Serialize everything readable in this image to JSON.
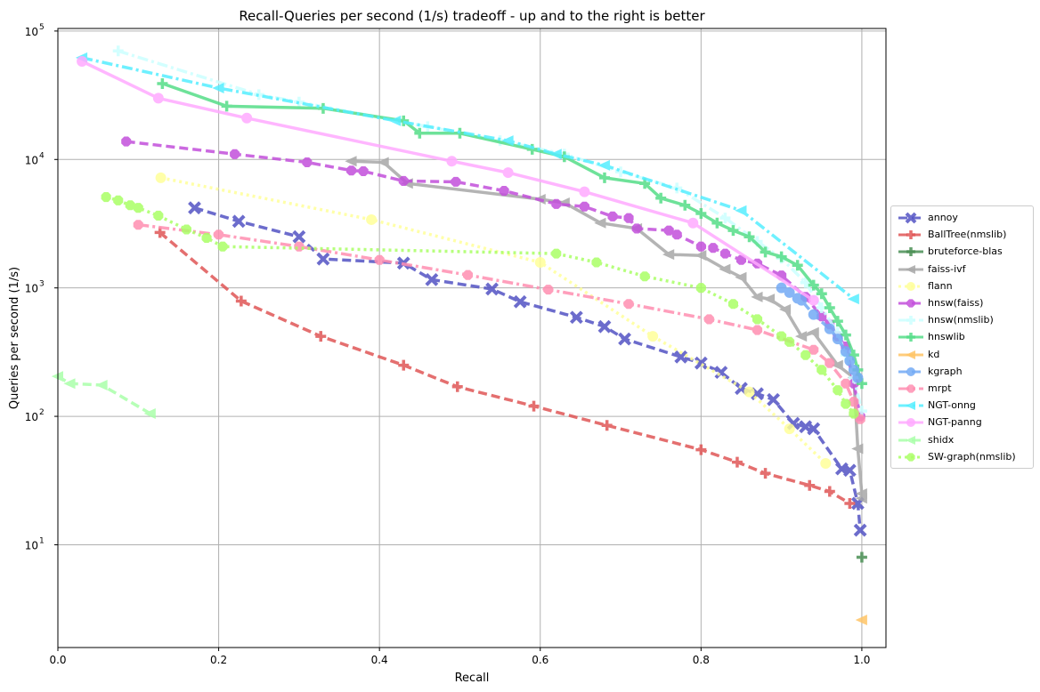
{
  "chart_data": {
    "type": "line",
    "title": "Recall-Queries per second (1/s) tradeoff - up and to the right is better",
    "xlabel": "Recall",
    "ylabel": "Queries per second (1/s)",
    "xlim": [
      0.0,
      1.03
    ],
    "ylim_log10": [
      0.2,
      5.02
    ],
    "y_scale": "log",
    "grid": true,
    "legend_position": "right",
    "x_ticks": [
      {
        "value": 0.0,
        "label": "0.0"
      },
      {
        "value": 0.2,
        "label": "0.2"
      },
      {
        "value": 0.4,
        "label": "0.4"
      },
      {
        "value": 0.6,
        "label": "0.6"
      },
      {
        "value": 0.8,
        "label": "0.8"
      },
      {
        "value": 1.0,
        "label": "1.0"
      }
    ],
    "y_ticks": [
      {
        "value": 10,
        "base": "10",
        "exp": "1"
      },
      {
        "value": 100,
        "base": "10",
        "exp": "2"
      },
      {
        "value": 1000,
        "base": "10",
        "exp": "3"
      },
      {
        "value": 10000,
        "base": "10",
        "exp": "4"
      },
      {
        "value": 100000,
        "base": "10",
        "exp": "5"
      }
    ],
    "series": [
      {
        "name": "annoy",
        "color": "#5353c4",
        "dash": "10,5",
        "marker": "x",
        "points": [
          [
            0.17,
            4200
          ],
          [
            0.225,
            3300
          ],
          [
            0.3,
            2500
          ],
          [
            0.33,
            1680
          ],
          [
            0.43,
            1560
          ],
          [
            0.465,
            1160
          ],
          [
            0.54,
            980
          ],
          [
            0.575,
            780
          ],
          [
            0.645,
            590
          ],
          [
            0.68,
            500
          ],
          [
            0.705,
            400
          ],
          [
            0.775,
            290
          ],
          [
            0.8,
            260
          ],
          [
            0.825,
            220
          ],
          [
            0.85,
            165
          ],
          [
            0.87,
            150
          ],
          [
            0.89,
            135
          ],
          [
            0.915,
            88
          ],
          [
            0.93,
            83
          ],
          [
            0.94,
            80
          ],
          [
            0.975,
            39
          ],
          [
            0.985,
            38
          ],
          [
            0.995,
            21
          ],
          [
            0.998,
            13
          ]
        ]
      },
      {
        "name": "BallTree(nmslib)",
        "color": "#e05656",
        "dash": "10,5",
        "marker": "plus",
        "points": [
          [
            0.127,
            2700
          ],
          [
            0.228,
            790
          ],
          [
            0.327,
            420
          ],
          [
            0.43,
            250
          ],
          [
            0.497,
            170
          ],
          [
            0.592,
            120
          ],
          [
            0.683,
            85
          ],
          [
            0.8,
            55
          ],
          [
            0.845,
            44
          ],
          [
            0.88,
            36
          ],
          [
            0.935,
            29
          ],
          [
            0.96,
            26
          ],
          [
            0.985,
            21
          ]
        ]
      },
      {
        "name": "bruteforce-blas",
        "color": "#4a8f55",
        "dash": "",
        "marker": "plus",
        "points": [
          [
            1.0,
            8
          ]
        ]
      },
      {
        "name": "faiss-ivf",
        "color": "#a8a8a8",
        "dash": "",
        "marker": "tri-left",
        "points": [
          [
            0.365,
            9700
          ],
          [
            0.405,
            9500
          ],
          [
            0.435,
            6500
          ],
          [
            0.6,
            4900
          ],
          [
            0.63,
            4600
          ],
          [
            0.675,
            3200
          ],
          [
            0.72,
            2900
          ],
          [
            0.76,
            1820
          ],
          [
            0.8,
            1790
          ],
          [
            0.83,
            1400
          ],
          [
            0.85,
            1210
          ],
          [
            0.87,
            850
          ],
          [
            0.885,
            820
          ],
          [
            0.905,
            680
          ],
          [
            0.925,
            420
          ],
          [
            0.94,
            450
          ],
          [
            0.97,
            250
          ],
          [
            0.99,
            200
          ],
          [
            0.995,
            56
          ],
          [
            1.0,
            25
          ],
          [
            1.0,
            23
          ]
        ]
      },
      {
        "name": "flann",
        "color": "#ffff99",
        "dash": "3,4",
        "marker": "circle",
        "points": [
          [
            0.128,
            7200
          ],
          [
            0.39,
            3400
          ],
          [
            0.6,
            1580
          ],
          [
            0.74,
            420
          ],
          [
            0.86,
            155
          ],
          [
            0.91,
            80
          ],
          [
            0.955,
            43
          ]
        ]
      },
      {
        "name": "hnsw(faiss)",
        "color": "#c34fdb",
        "dash": "10,5",
        "marker": "octagon",
        "points": [
          [
            0.085,
            13800
          ],
          [
            0.22,
            11000
          ],
          [
            0.31,
            9500
          ],
          [
            0.365,
            8200
          ],
          [
            0.38,
            8100
          ],
          [
            0.43,
            6800
          ],
          [
            0.495,
            6700
          ],
          [
            0.555,
            5700
          ],
          [
            0.62,
            4500
          ],
          [
            0.655,
            4300
          ],
          [
            0.69,
            3600
          ],
          [
            0.71,
            3500
          ],
          [
            0.72,
            2900
          ],
          [
            0.76,
            2800
          ],
          [
            0.77,
            2600
          ],
          [
            0.8,
            2100
          ],
          [
            0.815,
            2050
          ],
          [
            0.83,
            1850
          ],
          [
            0.85,
            1650
          ],
          [
            0.87,
            1550
          ],
          [
            0.9,
            1250
          ],
          [
            0.93,
            850
          ],
          [
            0.95,
            600
          ],
          [
            0.96,
            520
          ],
          [
            0.97,
            420
          ],
          [
            0.98,
            350
          ],
          [
            0.99,
            180
          ],
          [
            0.998,
            100
          ]
        ]
      },
      {
        "name": "hnsw(nmslib)",
        "color": "#ccffff",
        "dash": "12,4,3,4",
        "marker": "plus",
        "points": [
          [
            0.075,
            70000
          ],
          [
            0.25,
            32000
          ],
          [
            0.3,
            28000
          ],
          [
            0.46,
            18000
          ],
          [
            0.55,
            14000
          ],
          [
            0.63,
            11000
          ],
          [
            0.7,
            8000
          ],
          [
            0.77,
            6000
          ],
          [
            0.83,
            3500
          ],
          [
            0.87,
            2300
          ],
          [
            0.9,
            1700
          ],
          [
            0.93,
            1100
          ],
          [
            0.95,
            700
          ],
          [
            0.97,
            450
          ],
          [
            0.98,
            300
          ],
          [
            0.99,
            200
          ],
          [
            1.0,
            110
          ]
        ]
      },
      {
        "name": "hnswlib",
        "color": "#55dd88",
        "dash": "",
        "marker": "plus",
        "points": [
          [
            0.13,
            39000
          ],
          [
            0.21,
            26000
          ],
          [
            0.33,
            25000
          ],
          [
            0.43,
            20000
          ],
          [
            0.45,
            16000
          ],
          [
            0.5,
            16000
          ],
          [
            0.59,
            12000
          ],
          [
            0.63,
            10500
          ],
          [
            0.68,
            7200
          ],
          [
            0.73,
            6500
          ],
          [
            0.75,
            5000
          ],
          [
            0.78,
            4400
          ],
          [
            0.8,
            3800
          ],
          [
            0.82,
            3200
          ],
          [
            0.84,
            2800
          ],
          [
            0.86,
            2500
          ],
          [
            0.88,
            1900
          ],
          [
            0.9,
            1750
          ],
          [
            0.92,
            1500
          ],
          [
            0.94,
            1050
          ],
          [
            0.95,
            900
          ],
          [
            0.96,
            700
          ],
          [
            0.97,
            550
          ],
          [
            0.98,
            430
          ],
          [
            0.99,
            300
          ],
          [
            0.995,
            230
          ],
          [
            1.0,
            180
          ]
        ]
      },
      {
        "name": "kd",
        "color": "#ffc466",
        "dash": "",
        "marker": "tri-left",
        "points": [
          [
            1.0,
            2.6
          ]
        ]
      },
      {
        "name": "kgraph",
        "color": "#73aaf5",
        "dash": "10,5",
        "marker": "circle",
        "points": [
          [
            0.9,
            1000
          ],
          [
            0.91,
            920
          ],
          [
            0.92,
            830
          ],
          [
            0.925,
            800
          ],
          [
            0.94,
            620
          ],
          [
            0.96,
            480
          ],
          [
            0.97,
            400
          ],
          [
            0.98,
            320
          ],
          [
            0.985,
            270
          ],
          [
            0.99,
            230
          ],
          [
            0.995,
            200
          ]
        ]
      },
      {
        "name": "mrpt",
        "color": "#ff8fb1",
        "dash": "12,4,3,4",
        "marker": "octagon",
        "points": [
          [
            0.1,
            3100
          ],
          [
            0.2,
            2600
          ],
          [
            0.3,
            2100
          ],
          [
            0.4,
            1650
          ],
          [
            0.51,
            1260
          ],
          [
            0.61,
            970
          ],
          [
            0.71,
            750
          ],
          [
            0.81,
            570
          ],
          [
            0.87,
            470
          ],
          [
            0.94,
            330
          ],
          [
            0.96,
            260
          ],
          [
            0.98,
            180
          ],
          [
            0.99,
            130
          ],
          [
            0.998,
            95
          ]
        ]
      },
      {
        "name": "NGT-onng",
        "color": "#55eeff",
        "dash": "12,4,3,4",
        "marker": "tri-left",
        "points": [
          [
            0.03,
            62000
          ],
          [
            0.2,
            36000
          ],
          [
            0.42,
            20000
          ],
          [
            0.56,
            14000
          ],
          [
            0.62,
            11000
          ],
          [
            0.68,
            9000
          ],
          [
            0.85,
            4000
          ],
          [
            0.99,
            820
          ]
        ]
      },
      {
        "name": "NGT-panng",
        "color": "#ffaaff",
        "dash": "",
        "marker": "circle",
        "points": [
          [
            0.03,
            58000
          ],
          [
            0.125,
            30000
          ],
          [
            0.235,
            21000
          ],
          [
            0.49,
            9700
          ],
          [
            0.56,
            7900
          ],
          [
            0.655,
            5600
          ],
          [
            0.79,
            3200
          ],
          [
            0.94,
            800
          ]
        ]
      },
      {
        "name": "shidx",
        "color": "#aaffaa",
        "dash": "10,5",
        "marker": "tri-left",
        "points": [
          [
            0.0,
            205
          ],
          [
            0.015,
            180
          ],
          [
            0.055,
            175
          ],
          [
            0.115,
            105
          ]
        ]
      },
      {
        "name": "SW-graph(nmslib)",
        "color": "#aaff66",
        "dash": "3,4",
        "marker": "octagon",
        "points": [
          [
            0.06,
            5100
          ],
          [
            0.075,
            4800
          ],
          [
            0.09,
            4400
          ],
          [
            0.1,
            4200
          ],
          [
            0.125,
            3650
          ],
          [
            0.16,
            2850
          ],
          [
            0.185,
            2450
          ],
          [
            0.205,
            2100
          ],
          [
            0.62,
            1850
          ],
          [
            0.67,
            1580
          ],
          [
            0.73,
            1230
          ],
          [
            0.8,
            1000
          ],
          [
            0.84,
            750
          ],
          [
            0.87,
            570
          ],
          [
            0.9,
            420
          ],
          [
            0.91,
            380
          ],
          [
            0.93,
            300
          ],
          [
            0.95,
            230
          ],
          [
            0.97,
            160
          ],
          [
            0.98,
            125
          ],
          [
            0.99,
            105
          ]
        ]
      }
    ]
  }
}
